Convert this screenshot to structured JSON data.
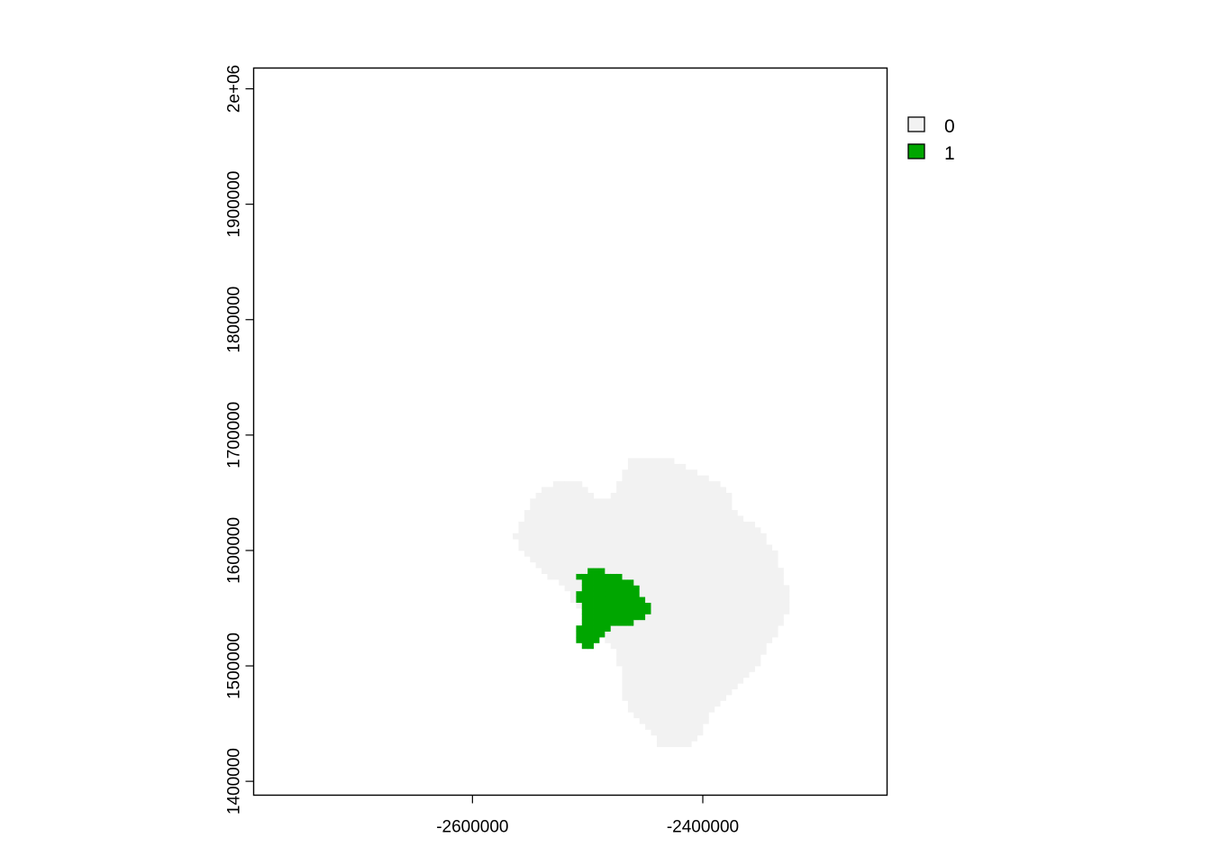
{
  "chart_data": {
    "type": "heatmap",
    "title": "",
    "xlabel": "",
    "ylabel": "",
    "xlim": [
      -2790000,
      -2240000
    ],
    "ylim": [
      1388000,
      2018000
    ],
    "x_ticks": [
      -2600000,
      -2400000
    ],
    "x_tick_labels": [
      "-2600000",
      "-2400000"
    ],
    "y_ticks": [
      1400000,
      1500000,
      1600000,
      1700000,
      1800000,
      1900000,
      2000000
    ],
    "y_tick_labels": [
      "1400000",
      "1500000",
      "1600000",
      "1700000",
      "1800000",
      "1900000",
      "2e+06"
    ],
    "grid": false,
    "legend_position": "right",
    "legend": [
      {
        "value": "0",
        "color": "#f2f2f2"
      },
      {
        "value": "1",
        "color": "#00a600"
      }
    ],
    "cell_size": 5000,
    "zero_region_polygon": [
      [
        -2460000,
        1682000
      ],
      [
        -2432000,
        1682000
      ],
      [
        -2410000,
        1670000
      ],
      [
        -2380000,
        1655000
      ],
      [
        -2372000,
        1635000
      ],
      [
        -2348000,
        1615000
      ],
      [
        -2335000,
        1595000
      ],
      [
        -2327000,
        1570000
      ],
      [
        -2325000,
        1550000
      ],
      [
        -2335000,
        1530000
      ],
      [
        -2350000,
        1505000
      ],
      [
        -2372000,
        1480000
      ],
      [
        -2392000,
        1460000
      ],
      [
        -2402000,
        1440000
      ],
      [
        -2412000,
        1430000
      ],
      [
        -2437000,
        1430000
      ],
      [
        -2450000,
        1450000
      ],
      [
        -2467000,
        1465000
      ],
      [
        -2470000,
        1492000
      ],
      [
        -2478000,
        1515000
      ],
      [
        -2505000,
        1545000
      ],
      [
        -2520000,
        1570000
      ],
      [
        -2545000,
        1585000
      ],
      [
        -2558000,
        1602000
      ],
      [
        -2563000,
        1612000
      ],
      [
        -2555000,
        1632000
      ],
      [
        -2543000,
        1650000
      ],
      [
        -2528000,
        1660000
      ],
      [
        -2510000,
        1660000
      ],
      [
        -2495000,
        1648000
      ],
      [
        -2480000,
        1645000
      ],
      [
        -2475000,
        1658000
      ],
      [
        -2468000,
        1670000
      ]
    ],
    "one_region_polygon": [
      [
        -2490000,
        1585000
      ],
      [
        -2482000,
        1580000
      ],
      [
        -2470000,
        1578000
      ],
      [
        -2462000,
        1575000
      ],
      [
        -2455000,
        1570000
      ],
      [
        -2452000,
        1558000
      ],
      [
        -2445000,
        1550000
      ],
      [
        -2446000,
        1543000
      ],
      [
        -2460000,
        1540000
      ],
      [
        -2463000,
        1532000
      ],
      [
        -2478000,
        1535000
      ],
      [
        -2485000,
        1525000
      ],
      [
        -2498000,
        1513000
      ],
      [
        -2505000,
        1520000
      ],
      [
        -2510000,
        1525000
      ],
      [
        -2505000,
        1545000
      ],
      [
        -2510000,
        1562000
      ],
      [
        -2503000,
        1570000
      ],
      [
        -2508000,
        1578000
      ],
      [
        -2497000,
        1585000
      ]
    ]
  }
}
